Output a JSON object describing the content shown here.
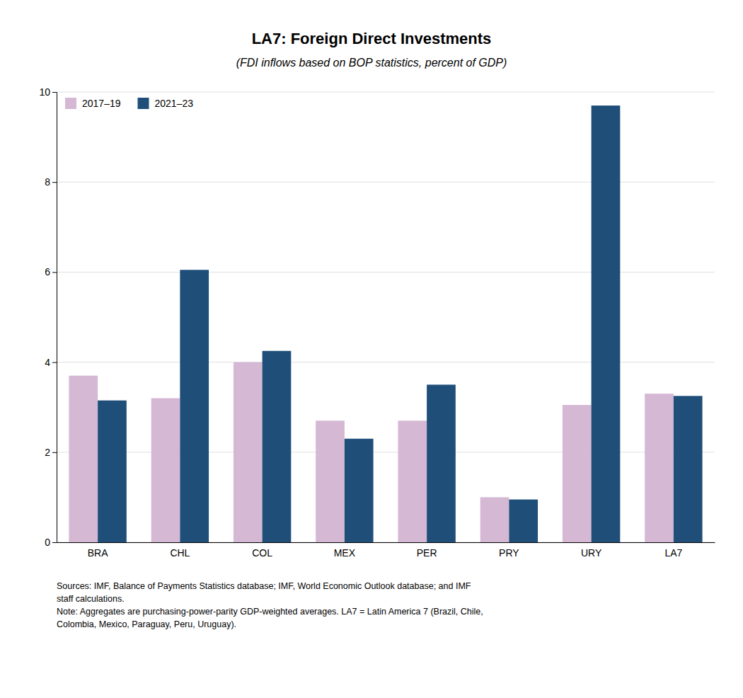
{
  "chart_data": {
    "type": "bar",
    "title": "LA7: Foreign Direct Investments",
    "subtitle": "(FDI inflows based on BOP statistics, percent of GDP)",
    "categories": [
      "BRA",
      "CHL",
      "COL",
      "MEX",
      "PER",
      "PRY",
      "URY",
      "LA7"
    ],
    "series": [
      {
        "name": "2017–19",
        "color": "#d4b8d4",
        "values": [
          3.7,
          3.2,
          4.0,
          2.7,
          2.7,
          1.0,
          3.05,
          3.3
        ]
      },
      {
        "name": "2021–23",
        "color": "#1f4e79",
        "values": [
          3.15,
          6.05,
          4.25,
          2.3,
          3.5,
          0.95,
          9.7,
          3.25
        ]
      }
    ],
    "ylim": [
      0,
      10
    ],
    "yticks": [
      0,
      2,
      4,
      6,
      8,
      10
    ],
    "grid": true,
    "legend": "upper left",
    "annotations": [
      "Sources: IMF, Balance of Payments Statistics database; IMF, World Economic Outlook database; and IMF",
      "staff calculations.",
      "Note: Aggregates are purchasing-power-parity GDP-weighted averages. LA7 = Latin America 7 (Brazil, Chile,",
      "Colombia, Mexico, Paraguay, Peru, Uruguay)."
    ]
  }
}
